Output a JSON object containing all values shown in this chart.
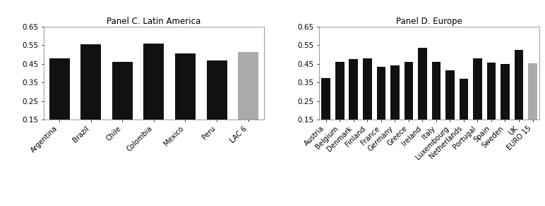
{
  "panel_c": {
    "title": "Panel C. Latin America",
    "categories": [
      "Argentina",
      "Brazil",
      "Chile",
      "Colombia",
      "Mexico",
      "Peru",
      "LAC 6"
    ],
    "values": [
      0.48,
      0.555,
      0.46,
      0.558,
      0.505,
      0.47,
      0.515
    ],
    "colors": [
      "#111111",
      "#111111",
      "#111111",
      "#111111",
      "#111111",
      "#111111",
      "#aaaaaa"
    ]
  },
  "panel_d": {
    "title": "Panel D. Europe",
    "categories": [
      "Austria",
      "Belgium",
      "Denmark",
      "Finland",
      "France",
      "Germany",
      "Greece",
      "Ireland",
      "Italy",
      "Luxembourg",
      "Netherlands",
      "Portugal",
      "Spain",
      "Sweden",
      "UK",
      "EURO 15"
    ],
    "values": [
      0.375,
      0.46,
      0.475,
      0.478,
      0.435,
      0.44,
      0.462,
      0.535,
      0.462,
      0.415,
      0.37,
      0.478,
      0.458,
      0.45,
      0.525,
      0.455
    ],
    "colors": [
      "#111111",
      "#111111",
      "#111111",
      "#111111",
      "#111111",
      "#111111",
      "#111111",
      "#111111",
      "#111111",
      "#111111",
      "#111111",
      "#111111",
      "#111111",
      "#111111",
      "#111111",
      "#aaaaaa"
    ]
  },
  "ylim": [
    0.15,
    0.65
  ],
  "yticks": [
    0.15,
    0.25,
    0.35,
    0.45,
    0.55,
    0.65
  ],
  "background_color": "#ffffff",
  "bar_edge_color": "none"
}
